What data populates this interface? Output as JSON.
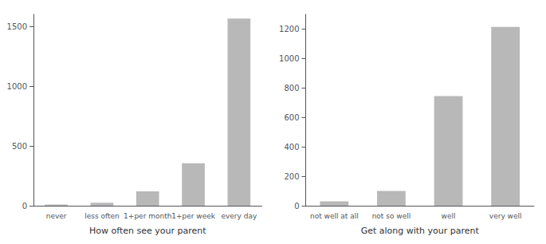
{
  "chart_data": [
    {
      "type": "bar",
      "xlabel": "How often see your parent",
      "categories": [
        "never",
        "less often",
        "1+per month",
        "1+per week",
        "every day"
      ],
      "values": [
        10,
        25,
        120,
        355,
        1565
      ],
      "color": "#b8b8b8",
      "ylim": [
        0,
        1600
      ],
      "yticks": [
        0,
        500,
        1000,
        1500
      ],
      "grid": false
    },
    {
      "type": "bar",
      "xlabel": "Get along with your parent",
      "categories": [
        "not well at all",
        "not so well",
        "well",
        "very well"
      ],
      "values": [
        30,
        100,
        745,
        1215
      ],
      "color": "#b8b8b8",
      "ylim": [
        0,
        1300
      ],
      "yticks": [
        0,
        200,
        400,
        600,
        800,
        1000,
        1200
      ],
      "grid": false
    }
  ]
}
